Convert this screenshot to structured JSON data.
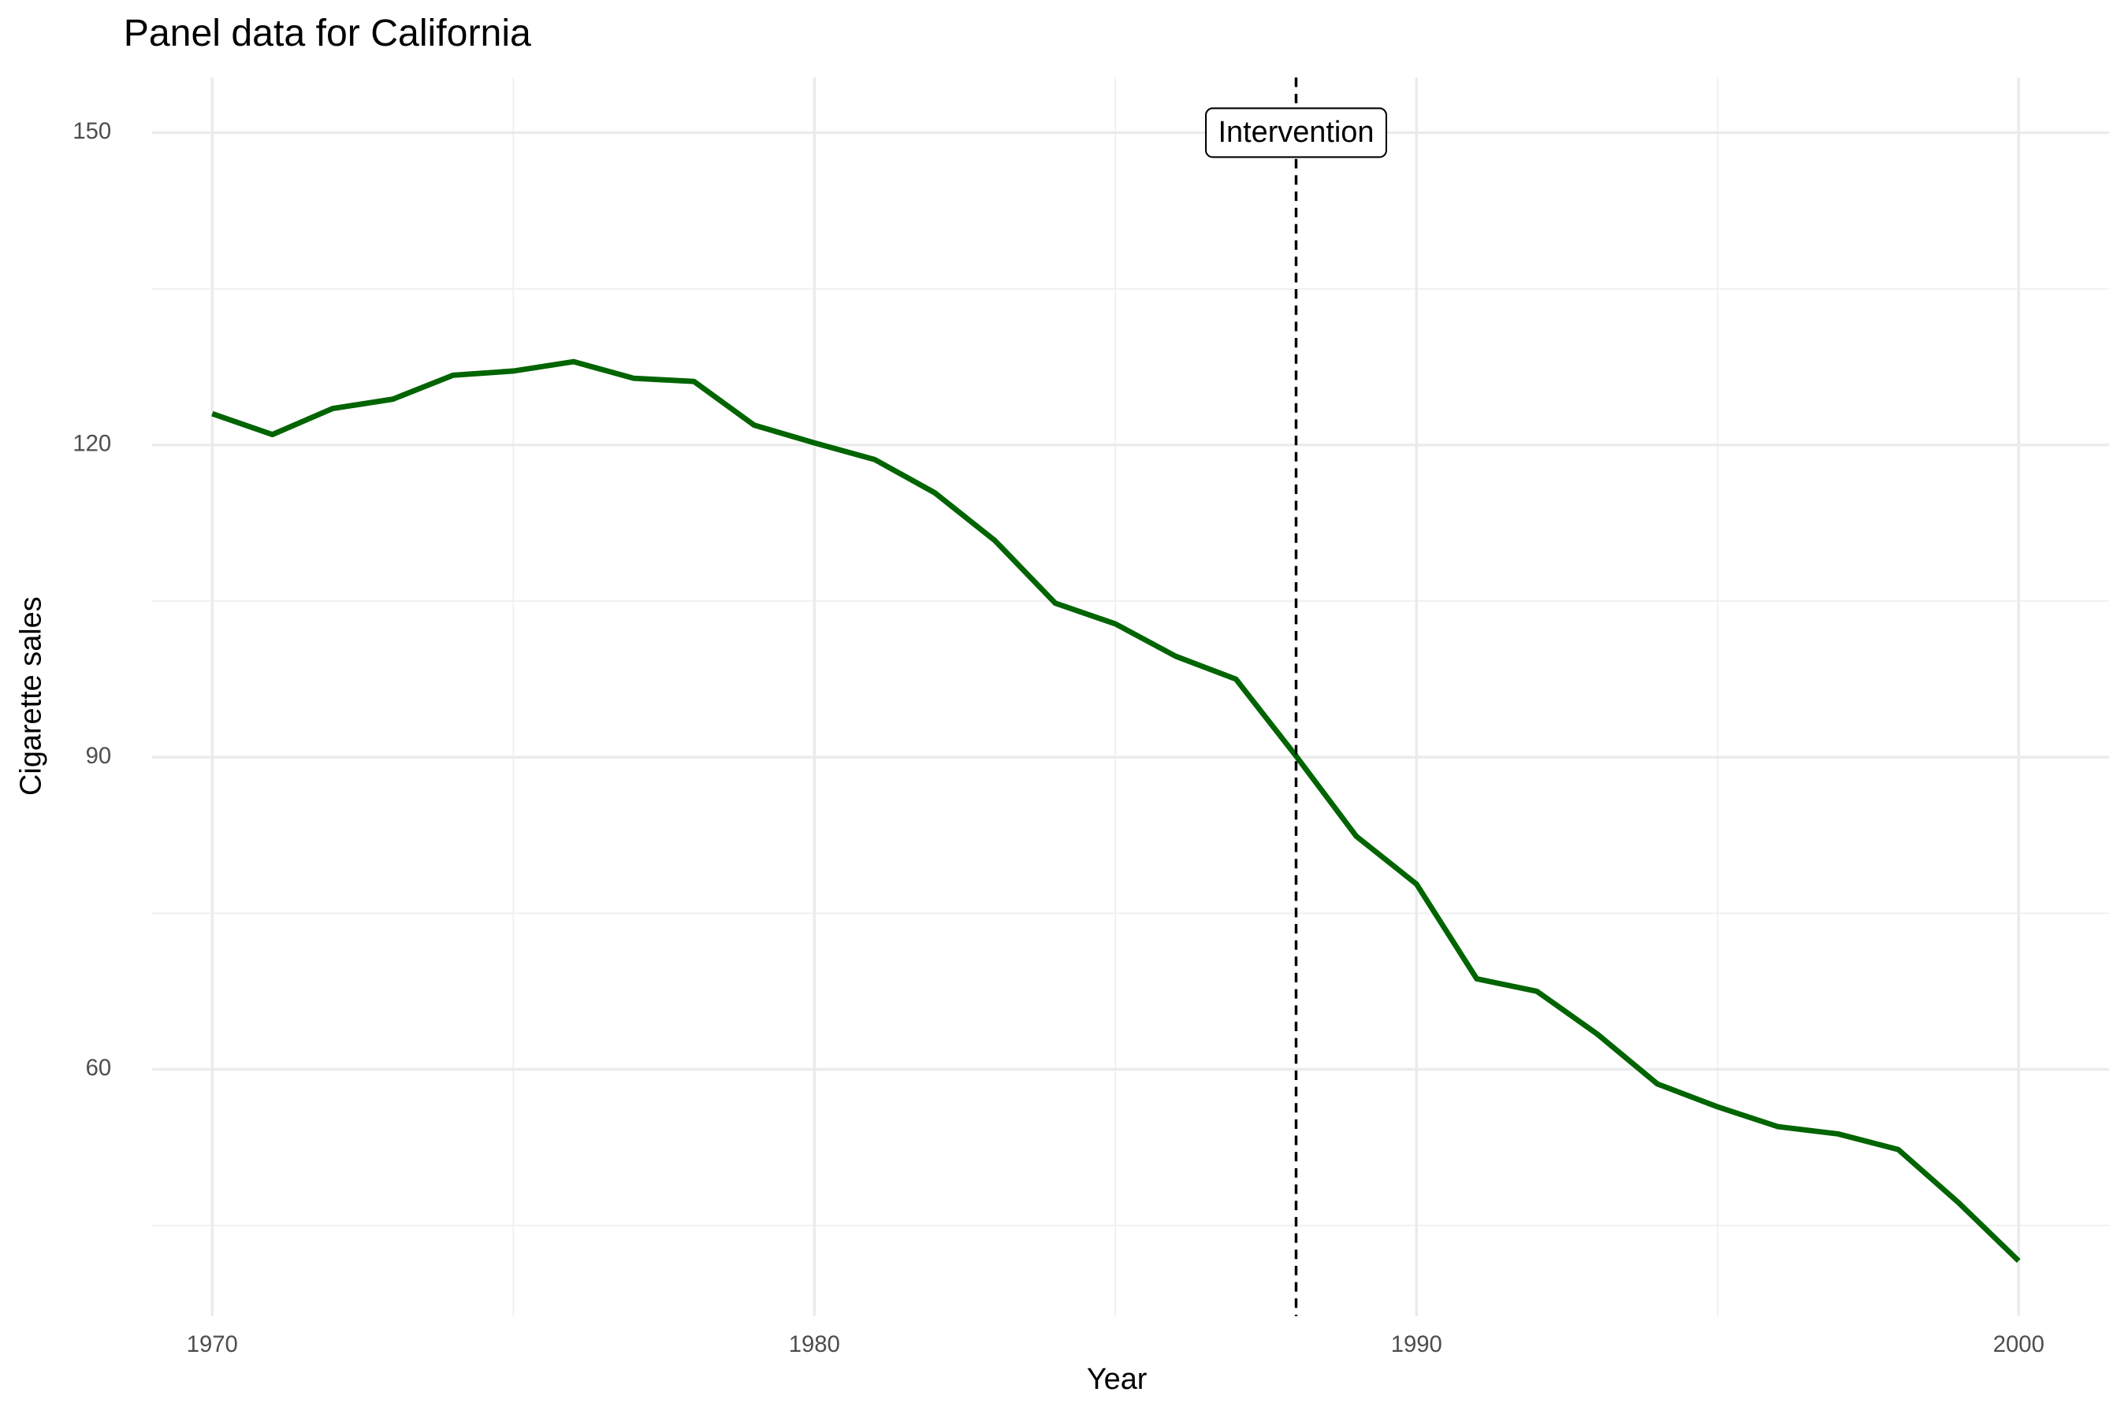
{
  "chart_data": {
    "type": "line",
    "title": "Panel data for California",
    "x_label": "Year",
    "y_label": "Cigarette sales",
    "x": [
      1970,
      1971,
      1972,
      1973,
      1974,
      1975,
      1976,
      1977,
      1978,
      1979,
      1980,
      1981,
      1982,
      1983,
      1984,
      1985,
      1986,
      1987,
      1988,
      1989,
      1990,
      1991,
      1992,
      1993,
      1994,
      1995,
      1996,
      1997,
      1998,
      1999,
      2000
    ],
    "series": [
      {
        "color": "#006400",
        "values": [
          123,
          121,
          123.5,
          124.4,
          126.7,
          127.1,
          128,
          126.4,
          126.1,
          121.9,
          120.2,
          118.6,
          115.4,
          110.8,
          104.8,
          102.8,
          99.7,
          97.5,
          90.1,
          82.4,
          77.8,
          68.7,
          67.5,
          63.4,
          58.6,
          56.4,
          54.5,
          53.8,
          52.3,
          47.2,
          41.6
        ]
      }
    ],
    "xlim": [
      1969,
      2001.5
    ],
    "ylim": [
      36.3,
      155.3
    ],
    "xticks": [
      1970,
      1980,
      1990,
      2000
    ],
    "yticks": [
      60,
      90,
      120,
      150
    ],
    "x_minor_ticks": [
      1975,
      1985,
      1995
    ],
    "y_minor_ticks": [
      45,
      75,
      105,
      135
    ],
    "grid": true,
    "vline": {
      "x": 1988,
      "label": "Intervention",
      "label_y": 150
    }
  }
}
